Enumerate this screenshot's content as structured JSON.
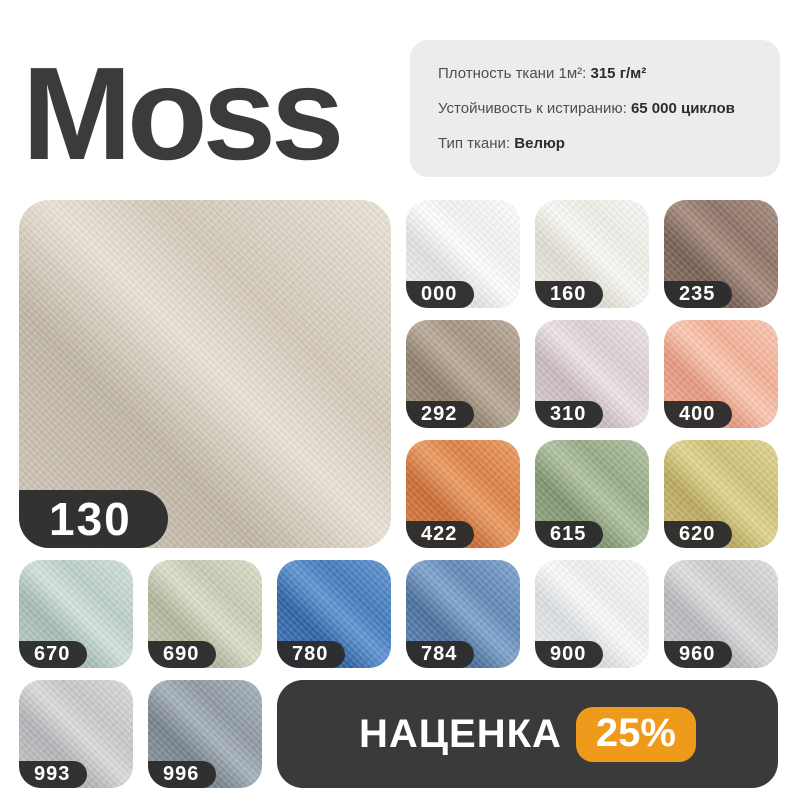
{
  "page": {
    "background": "#ffffff",
    "accent_dark": "#3a3a3a",
    "pill_color": "#2c2c2c"
  },
  "header": {
    "title": "Moss",
    "specs": [
      {
        "label": "Плотность ткани 1м²:",
        "value": "315 г/м²"
      },
      {
        "label": "Устойчивость к истиранию:",
        "value": "65 000 циклов"
      },
      {
        "label": "Тип ткани:",
        "value": "Велюр"
      }
    ]
  },
  "featured_swatch": {
    "code": "130",
    "base": "#d3c9ba",
    "light": "#ebe4d7",
    "shade": "#c0b6a6"
  },
  "swatches": [
    {
      "code": "000",
      "base": "#f3f3f3",
      "light": "#ffffff",
      "shade": "#e2e2e3"
    },
    {
      "code": "160",
      "base": "#f0eee8",
      "light": "#fbfaf6",
      "shade": "#e0ddd3"
    },
    {
      "code": "235",
      "base": "#8d7265",
      "light": "#a78c7e",
      "shade": "#765e53"
    },
    {
      "code": "292",
      "base": "#a4937f",
      "light": "#bbac99",
      "shade": "#8e7e6b"
    },
    {
      "code": "310",
      "base": "#ddd0d2",
      "light": "#eee4e6",
      "shade": "#c9babd"
    },
    {
      "code": "400",
      "base": "#f4b096",
      "light": "#fcc9b2",
      "shade": "#e6987e"
    },
    {
      "code": "422",
      "base": "#dd7f44",
      "light": "#ec9c60",
      "shade": "#ca6b33"
    },
    {
      "code": "615",
      "base": "#96ab86",
      "light": "#b2c4a1",
      "shade": "#7f956d"
    },
    {
      "code": "620",
      "base": "#cfc077",
      "light": "#e1d590",
      "shade": "#baa95d"
    },
    {
      "code": "670",
      "base": "#bccfca",
      "light": "#d4e2dd",
      "shade": "#a6bbb5"
    },
    {
      "code": "690",
      "base": "#c6ccb4",
      "light": "#dbe0c9",
      "shade": "#b0b69c"
    },
    {
      "code": "780",
      "base": "#4179bd",
      "light": "#6095d4",
      "shade": "#2e62a4"
    },
    {
      "code": "784",
      "base": "#5f87b8",
      "light": "#81a5cd",
      "shade": "#496e9c"
    },
    {
      "code": "900",
      "base": "#eef0f1",
      "light": "#fbfcfd",
      "shade": "#dbdee0"
    },
    {
      "code": "960",
      "base": "#cbccce",
      "light": "#dfe0e2",
      "shade": "#b6b7ba"
    },
    {
      "code": "993",
      "base": "#c6c8ca",
      "light": "#dadcde",
      "shade": "#b1b3b6"
    },
    {
      "code": "996",
      "base": "#8e99a3",
      "light": "#a7b2bb",
      "shade": "#77828c"
    }
  ],
  "promo": {
    "label": "НАЦЕНКА",
    "badge": "25%",
    "badge_color": "#f09a1b"
  }
}
